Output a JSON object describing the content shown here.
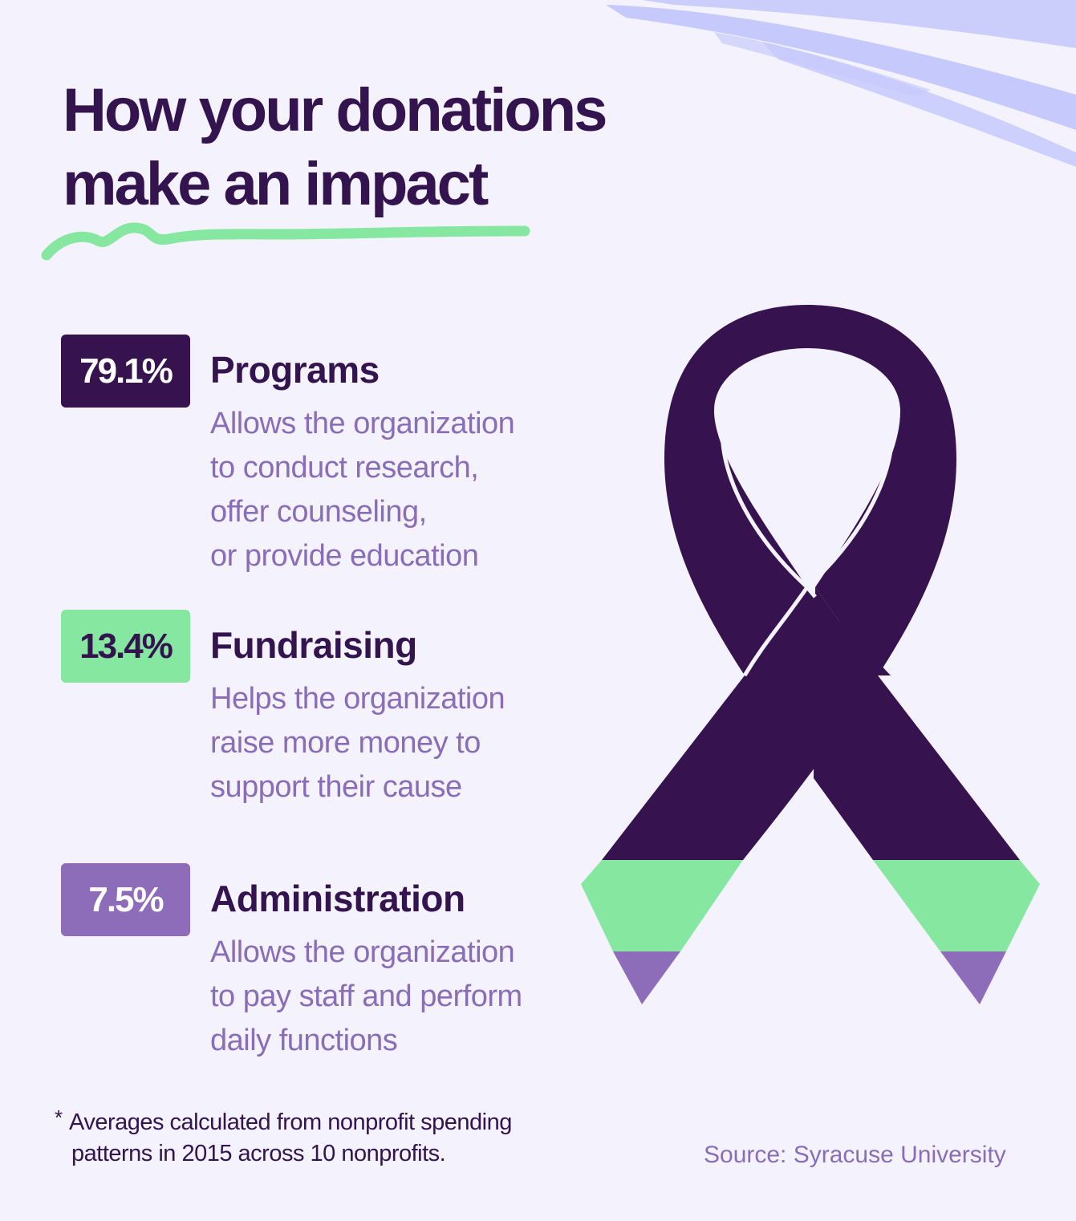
{
  "title": {
    "line1": "How your donations",
    "line2": "make an impact"
  },
  "items": [
    {
      "percent": "79.1%",
      "label": "Programs",
      "badge_color": "#36134f",
      "badge_text_color": "#ffffff",
      "description_lines": [
        "Allows the organization",
        "to conduct research,",
        "offer counseling,",
        "or provide education"
      ]
    },
    {
      "percent": "13.4%",
      "label": "Fundraising",
      "badge_color": "#86e8a0",
      "badge_text_color": "#33144f",
      "description_lines": [
        "Helps the organization",
        "raise more money to",
        "support their cause"
      ]
    },
    {
      "percent": "7.5%",
      "label": "Administration",
      "badge_color": "#8d6cba",
      "badge_text_color": "#ffffff",
      "description_lines": [
        "Allows the organization",
        "to pay staff and perform",
        "daily functions"
      ]
    }
  ],
  "footnote": {
    "asterisk": "*",
    "line1": "Averages calculated from nonprofit spending",
    "line2": "patterns in 2015 across 10 nonprofits."
  },
  "source": "Source: Syracuse University",
  "colors": {
    "background": "#f4f3fd",
    "dark_purple": "#36134f",
    "mint_green": "#86e8a0",
    "lavender": "#8d6cba",
    "brush_blue": "#c6c9fb"
  },
  "icons": [
    "awareness-ribbon-icon",
    "brush-stroke-decoration",
    "green-squiggle-underline"
  ]
}
